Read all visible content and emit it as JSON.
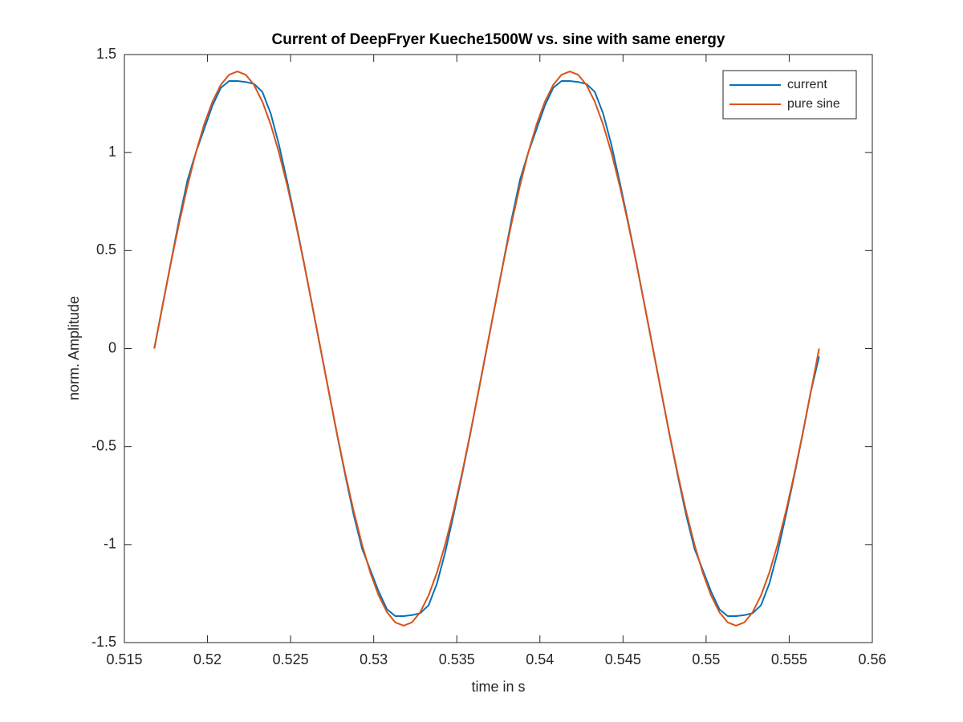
{
  "chart_data": {
    "type": "line",
    "title": "Current of DeepFryer Kueche1500W vs. sine with same energy",
    "x_label": "time in s",
    "y_label": "norm. Amplitude",
    "x": [
      0.5168,
      0.5173,
      0.5178,
      0.5183,
      0.5188,
      0.5193,
      0.5198,
      0.5203,
      0.5208,
      0.5213,
      0.5218,
      0.5223,
      0.5228,
      0.5233,
      0.5238,
      0.5243,
      0.5248,
      0.5253,
      0.5258,
      0.5263,
      0.5268,
      0.5273,
      0.5278,
      0.5283,
      0.5288,
      0.5293,
      0.5298,
      0.5303,
      0.5308,
      0.5313,
      0.5318,
      0.5323,
      0.5328,
      0.5333,
      0.5338,
      0.5343,
      0.5348,
      0.5353,
      0.5358,
      0.5363,
      0.5368,
      0.5373,
      0.5378,
      0.5383,
      0.5388,
      0.5393,
      0.5398,
      0.5403,
      0.5408,
      0.5413,
      0.5418,
      0.5423,
      0.5428,
      0.5433,
      0.5438,
      0.5443,
      0.5448,
      0.5453,
      0.5458,
      0.5463,
      0.5468,
      0.5473,
      0.5478,
      0.5483,
      0.5488,
      0.5493,
      0.5498,
      0.5503,
      0.5508,
      0.5513,
      0.5518,
      0.5523,
      0.5528,
      0.5533,
      0.5538,
      0.5543,
      0.5548,
      0.5553,
      0.5558,
      0.5563,
      0.5568
    ],
    "series": [
      {
        "name": "current",
        "color": "#0072bd",
        "values": [
          0,
          0.22,
          0.44,
          0.66,
          0.86,
          1.0,
          1.12,
          1.24,
          1.33,
          1.365,
          1.365,
          1.36,
          1.35,
          1.31,
          1.2,
          1.04,
          0.85,
          0.65,
          0.44,
          0.22,
          0,
          -0.22,
          -0.44,
          -0.65,
          -0.85,
          -1.02,
          -1.13,
          -1.24,
          -1.33,
          -1.365,
          -1.365,
          -1.36,
          -1.35,
          -1.31,
          -1.2,
          -1.04,
          -0.85,
          -0.65,
          -0.44,
          -0.22,
          0,
          0.22,
          0.44,
          0.66,
          0.86,
          1.0,
          1.12,
          1.24,
          1.33,
          1.365,
          1.365,
          1.36,
          1.35,
          1.31,
          1.2,
          1.04,
          0.85,
          0.65,
          0.44,
          0.22,
          0,
          -0.22,
          -0.44,
          -0.65,
          -0.85,
          -1.02,
          -1.13,
          -1.24,
          -1.33,
          -1.365,
          -1.365,
          -1.36,
          -1.35,
          -1.31,
          -1.2,
          -1.04,
          -0.85,
          -0.65,
          -0.44,
          -0.22,
          -0.04
        ]
      },
      {
        "name": "pure sine",
        "color": "#d95319",
        "values": [
          0,
          0.221,
          0.437,
          0.642,
          0.831,
          1.0,
          1.144,
          1.26,
          1.345,
          1.397,
          1.414,
          1.397,
          1.345,
          1.26,
          1.144,
          1.0,
          0.831,
          0.642,
          0.437,
          0.221,
          0,
          -0.221,
          -0.437,
          -0.642,
          -0.831,
          -1.0,
          -1.144,
          -1.26,
          -1.345,
          -1.397,
          -1.414,
          -1.397,
          -1.345,
          -1.26,
          -1.144,
          -1.0,
          -0.831,
          -0.642,
          -0.437,
          -0.221,
          0,
          0.221,
          0.437,
          0.642,
          0.831,
          1.0,
          1.144,
          1.26,
          1.345,
          1.397,
          1.414,
          1.397,
          1.345,
          1.26,
          1.144,
          1.0,
          0.831,
          0.642,
          0.437,
          0.221,
          0,
          -0.221,
          -0.437,
          -0.642,
          -0.831,
          -1.0,
          -1.144,
          -1.26,
          -1.345,
          -1.397,
          -1.414,
          -1.397,
          -1.345,
          -1.26,
          -1.144,
          -1.0,
          -0.831,
          -0.642,
          -0.437,
          -0.221,
          0
        ]
      }
    ],
    "xlim": [
      0.515,
      0.56
    ],
    "xticks": [
      0.515,
      0.52,
      0.525,
      0.53,
      0.535,
      0.54,
      0.545,
      0.55,
      0.555,
      0.56
    ],
    "ylim": [
      -1.5,
      1.5
    ],
    "yticks": [
      -1.5,
      -1,
      -0.5,
      0,
      0.5,
      1,
      1.5
    ],
    "grid": false,
    "legend": "top-right"
  }
}
